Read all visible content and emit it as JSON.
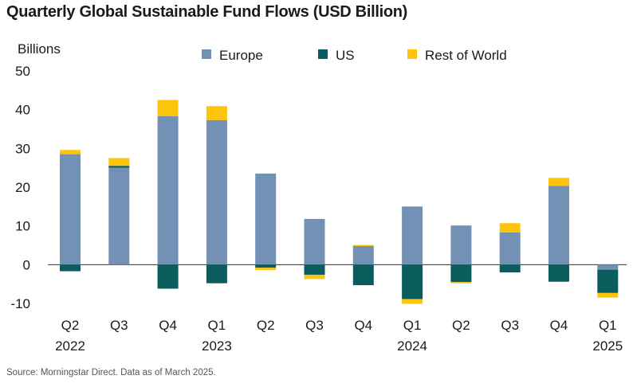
{
  "title": "Quarterly Global Sustainable Fund Flows (USD Billion)",
  "source": "Source: Morningstar Direct. Data as of March 2025.",
  "colors": {
    "Europe": "#7390b5",
    "US": "#0b5c5c",
    "Rest of World": "#fdc40c"
  },
  "chart_data": {
    "type": "bar",
    "stacked": true,
    "title": "Quarterly Global Sustainable Fund Flows (USD Billion)",
    "ylabel": "Billions",
    "xlabel": "",
    "ylim": [
      -10,
      50
    ],
    "yticks": [
      50,
      40,
      30,
      20,
      10,
      0,
      -10
    ],
    "grid": false,
    "legend": "top",
    "categories": [
      "Q2 2022",
      "Q3 2022",
      "Q4 2022",
      "Q1 2023",
      "Q2 2023",
      "Q3 2023",
      "Q4 2023",
      "Q1 2024",
      "Q2 2024",
      "Q3 2024",
      "Q4 2024",
      "Q1 2025"
    ],
    "tick_labels": [
      {
        "q": "Q2",
        "year": "2022"
      },
      {
        "q": "Q3",
        "year": ""
      },
      {
        "q": "Q4",
        "year": ""
      },
      {
        "q": "Q1",
        "year": "2023"
      },
      {
        "q": "Q2",
        "year": ""
      },
      {
        "q": "Q3",
        "year": ""
      },
      {
        "q": "Q4",
        "year": ""
      },
      {
        "q": "Q1",
        "year": "2024"
      },
      {
        "q": "Q2",
        "year": ""
      },
      {
        "q": "Q3",
        "year": ""
      },
      {
        "q": "Q4",
        "year": ""
      },
      {
        "q": "Q1",
        "year": "2025"
      }
    ],
    "series": [
      {
        "name": "Europe",
        "values": [
          28.5,
          25.0,
          38.3,
          37.3,
          23.5,
          11.8,
          4.8,
          15.0,
          10.1,
          8.3,
          20.3,
          -1.3
        ]
      },
      {
        "name": "US",
        "values": [
          -1.7,
          0.5,
          -6.2,
          -4.8,
          -0.8,
          -2.6,
          -5.3,
          -8.9,
          -4.5,
          -2.0,
          -4.4,
          -6.0
        ]
      },
      {
        "name": "Rest of World",
        "values": [
          1.1,
          2.0,
          4.2,
          3.6,
          -0.6,
          -1.1,
          0.3,
          -1.2,
          -0.3,
          2.4,
          2.1,
          -1.2
        ]
      }
    ]
  }
}
